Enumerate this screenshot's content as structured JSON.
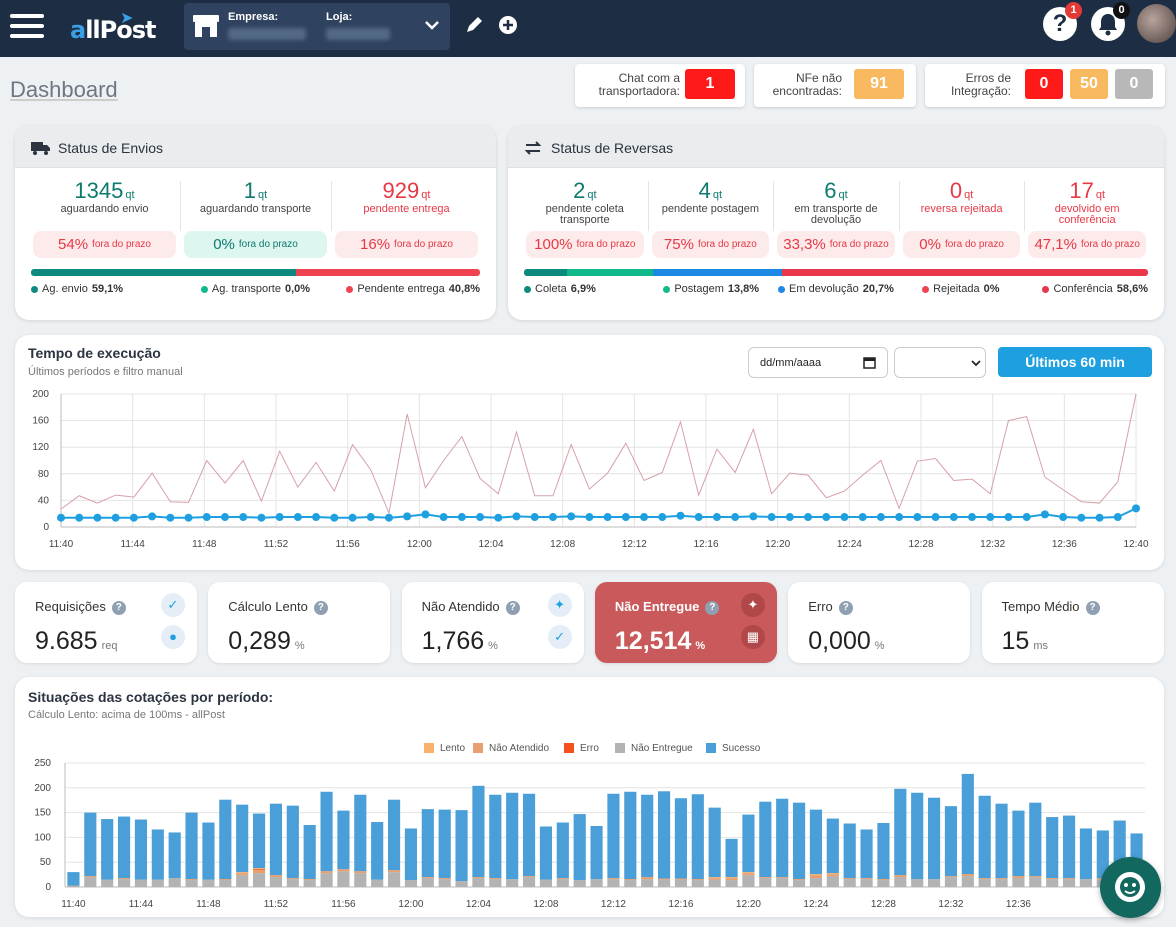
{
  "header": {
    "logo": "allPost",
    "empresa_label": "Empresa:",
    "loja_label": "Loja:",
    "help_badge": "1",
    "bell_badge": "0",
    "help_glyph": "?",
    "icons": [
      "menu-icon",
      "store-icon",
      "chevron-down-icon",
      "pencil-icon",
      "plus-circle-icon",
      "help-icon",
      "bell-icon"
    ]
  },
  "page_title": "Dashboard",
  "alerts": {
    "chat": {
      "label": "Chat com a transportadora:",
      "value": "1"
    },
    "nfe": {
      "label": "NFe não encontradas:",
      "value": "91"
    },
    "errors": {
      "label": "Erros de Integração:",
      "values": [
        "0",
        "50",
        "0"
      ]
    }
  },
  "envios": {
    "title": "Status de Envios",
    "stats": [
      {
        "value": "1345",
        "unit": "qt",
        "label": "aguardando envio",
        "pct": "54%",
        "pct_label": "fora do prazo",
        "style": "teal"
      },
      {
        "value": "1",
        "unit": "qt",
        "label": "aguardando transporte",
        "pct": "0%",
        "pct_label": "fora do prazo",
        "style": "teal"
      },
      {
        "value": "929",
        "unit": "qt",
        "label": "pendente entrega",
        "pct": "16%",
        "pct_label": "fora do prazo",
        "style": "red"
      }
    ],
    "segments": [
      {
        "name": "Ag. envio",
        "value": "59,1%",
        "frac": 0.591,
        "color": "#0d8a7d"
      },
      {
        "name": "Ag. transporte",
        "value": "0,0%",
        "frac": 0.0,
        "color": "#10b98a"
      },
      {
        "name": "Pendente entrega",
        "value": "40,8%",
        "frac": 0.408,
        "color": "#ef4350"
      }
    ]
  },
  "reversas": {
    "title": "Status de Reversas",
    "stats": [
      {
        "value": "2",
        "unit": "qt",
        "label": "pendente coleta transporte",
        "pct": "100%",
        "pct_label": "fora do prazo",
        "style": "teal"
      },
      {
        "value": "4",
        "unit": "qt",
        "label": "pendente postagem",
        "pct": "75%",
        "pct_label": "fora do prazo",
        "style": "teal"
      },
      {
        "value": "6",
        "unit": "qt",
        "label": "em transporte de devolução",
        "pct": "33,3%",
        "pct_label": "fora do prazo",
        "style": "teal"
      },
      {
        "value": "0",
        "unit": "qt",
        "label": "reversa rejeitada",
        "pct": "0%",
        "pct_label": "fora do prazo",
        "style": "red"
      },
      {
        "value": "17",
        "unit": "qt",
        "label": "devolvido em conferência",
        "pct": "47,1%",
        "pct_label": "fora do prazo",
        "style": "red"
      }
    ],
    "segments": [
      {
        "name": "Coleta",
        "value": "6,9%",
        "frac": 0.069,
        "color": "#0d8a7d"
      },
      {
        "name": "Postagem",
        "value": "13,8%",
        "frac": 0.138,
        "color": "#10b98a"
      },
      {
        "name": "Em devolução",
        "value": "20,7%",
        "frac": 0.207,
        "color": "#1e88e5"
      },
      {
        "name": "Rejeitada",
        "value": "0%",
        "frac": 0.0,
        "color": "#ef4350"
      },
      {
        "name": "Conferência",
        "value": "58,6%",
        "frac": 0.586,
        "color": "#e8364a"
      }
    ]
  },
  "execucao": {
    "title": "Tempo de execução",
    "subtitle": "Últimos períodos e filtro manual",
    "date_placeholder": "dd/mm/aaaa",
    "select_value": "",
    "button": "Últimos 60 min"
  },
  "metrics": [
    {
      "label": "Requisições",
      "value": "9.685",
      "unit": "req",
      "highlight": false,
      "icons": [
        "satellite-icon",
        "location-pin-icon"
      ]
    },
    {
      "label": "Cálculo Lento",
      "value": "0,289",
      "unit": "%",
      "highlight": false,
      "icons": []
    },
    {
      "label": "Não Atendido",
      "value": "1,766",
      "unit": "%",
      "highlight": false,
      "icons": [
        "sparkles-icon",
        "satellite-icon"
      ]
    },
    {
      "label": "Não Entregue",
      "value": "12,514",
      "unit": "%",
      "highlight": true,
      "icons": [
        "sparkles-icon",
        "store-icon"
      ]
    },
    {
      "label": "Erro",
      "value": "0,000",
      "unit": "%",
      "highlight": false,
      "icons": []
    },
    {
      "label": "Tempo Médio",
      "value": "15",
      "unit": "ms",
      "highlight": false,
      "icons": []
    }
  ],
  "cotacoes": {
    "title": "Situações das cotações por período:",
    "subtitle": "Cálculo Lento: acima de 100ms - allPost"
  },
  "chart_data": [
    {
      "type": "line",
      "x_ticks": [
        "11:40",
        "11:44",
        "11:48",
        "11:52",
        "11:56",
        "12:00",
        "12:04",
        "12:08",
        "12:12",
        "12:16",
        "12:20",
        "12:24",
        "12:28",
        "12:32",
        "12:36",
        "12:40"
      ],
      "ylim": [
        0,
        200
      ],
      "y_ticks": [
        0,
        40,
        80,
        120,
        160,
        200
      ],
      "grid": true,
      "series": [
        {
          "color": "#d6a0a8",
          "values": [
            27,
            47,
            36,
            48,
            45,
            81,
            38,
            37,
            100,
            66,
            100,
            39,
            114,
            60,
            97,
            54,
            124,
            86,
            21,
            170,
            59,
            100,
            136,
            73,
            50,
            143,
            47,
            47,
            124,
            57,
            81,
            126,
            70,
            82,
            158,
            48,
            117,
            82,
            147,
            50,
            81,
            78,
            44,
            54,
            78,
            100,
            28,
            99,
            103,
            70,
            72,
            50,
            160,
            166,
            75,
            56,
            38,
            36,
            68,
            200
          ],
          "style": "thin"
        },
        {
          "color": "#1ea0e0",
          "values": [
            14,
            14,
            14,
            14,
            14,
            16,
            14,
            14,
            15,
            15,
            15,
            14,
            15,
            15,
            15,
            14,
            14,
            15,
            14,
            16,
            19,
            15,
            15,
            15,
            14,
            16,
            15,
            15,
            16,
            15,
            15,
            15,
            15,
            15,
            17,
            15,
            15,
            15,
            16,
            15,
            15,
            15,
            15,
            15,
            15,
            15,
            15,
            15,
            15,
            15,
            15,
            15,
            15,
            15,
            19,
            15,
            14,
            14,
            15,
            28
          ],
          "style": "markers"
        }
      ]
    },
    {
      "type": "bar",
      "stacked": true,
      "x_ticks": [
        "11:40",
        "11:44",
        "11:48",
        "11:52",
        "11:56",
        "12:00",
        "12:04",
        "12:08",
        "12:12",
        "12:16",
        "12:20",
        "12:24",
        "12:28",
        "12:32",
        "12:36"
      ],
      "ylim": [
        0,
        250
      ],
      "y_ticks": [
        0,
        50,
        100,
        150,
        200,
        250
      ],
      "legend_position": "top",
      "series": [
        {
          "name": "Lento",
          "color": "#f6b26b",
          "values": [
            0,
            0,
            0,
            0,
            0,
            0,
            0,
            0,
            0,
            0,
            2,
            2,
            0,
            0,
            0,
            0,
            0,
            0,
            0,
            0,
            0,
            0,
            0,
            0,
            0,
            0,
            0,
            0,
            0,
            0,
            0,
            0,
            0,
            0,
            0,
            0,
            0,
            0,
            2,
            2,
            2,
            0,
            0,
            0,
            2,
            2,
            0,
            0,
            0,
            0,
            0,
            0,
            0,
            0,
            0,
            0,
            0,
            0,
            0,
            0,
            0,
            0,
            0,
            0
          ]
        },
        {
          "name": "Não Atendido",
          "color": "#e9a070",
          "values": [
            0,
            2,
            0,
            2,
            0,
            0,
            0,
            2,
            0,
            2,
            4,
            6,
            4,
            2,
            2,
            4,
            4,
            4,
            0,
            4,
            0,
            2,
            2,
            0,
            2,
            2,
            0,
            2,
            0,
            2,
            0,
            0,
            2,
            2,
            4,
            2,
            2,
            2,
            3,
            4,
            4,
            2,
            2,
            2,
            6,
            4,
            2,
            2,
            2,
            4,
            0,
            0,
            2,
            4,
            2,
            2,
            4,
            2,
            2,
            2,
            0,
            2,
            2,
            0
          ]
        },
        {
          "name": "Erro",
          "color": "#f4511e",
          "values": [
            0,
            0,
            0,
            0,
            0,
            0,
            0,
            0,
            0,
            0,
            0,
            2,
            0,
            0,
            0,
            0,
            0,
            0,
            0,
            0,
            0,
            0,
            0,
            0,
            0,
            0,
            0,
            0,
            0,
            0,
            0,
            0,
            0,
            0,
            0,
            0,
            0,
            0,
            0,
            0,
            0,
            0,
            0,
            0,
            0,
            0,
            0,
            0,
            0,
            0,
            0,
            0,
            0,
            0,
            0,
            0,
            0,
            0,
            0,
            0,
            0,
            0,
            0,
            0
          ]
        },
        {
          "name": "Não Entregue",
          "color": "#b3b3b3",
          "values": [
            3,
            20,
            15,
            16,
            15,
            15,
            18,
            14,
            15,
            14,
            24,
            28,
            20,
            16,
            14,
            28,
            32,
            28,
            15,
            30,
            14,
            18,
            16,
            12,
            18,
            16,
            16,
            20,
            15,
            16,
            14,
            16,
            16,
            14,
            16,
            15,
            15,
            14,
            15,
            14,
            24,
            18,
            18,
            14,
            18,
            22,
            16,
            16,
            14,
            20,
            16,
            16,
            20,
            22,
            16,
            16,
            18,
            20,
            16,
            16,
            16,
            16,
            14,
            12
          ]
        },
        {
          "name": "Sucesso",
          "color": "#4a9fd8",
          "values": [
            27,
            128,
            122,
            124,
            121,
            101,
            92,
            134,
            115,
            160,
            136,
            110,
            144,
            146,
            109,
            160,
            118,
            154,
            116,
            142,
            104,
            137,
            138,
            143,
            184,
            168,
            174,
            166,
            107,
            112,
            133,
            107,
            170,
            176,
            166,
            176,
            162,
            171,
            140,
            77,
            116,
            152,
            158,
            154,
            130,
            110,
            110,
            98,
            113,
            174,
            174,
            164,
            141,
            202,
            166,
            150,
            132,
            148,
            123,
            126,
            102,
            96,
            118,
            96
          ]
        }
      ]
    }
  ]
}
